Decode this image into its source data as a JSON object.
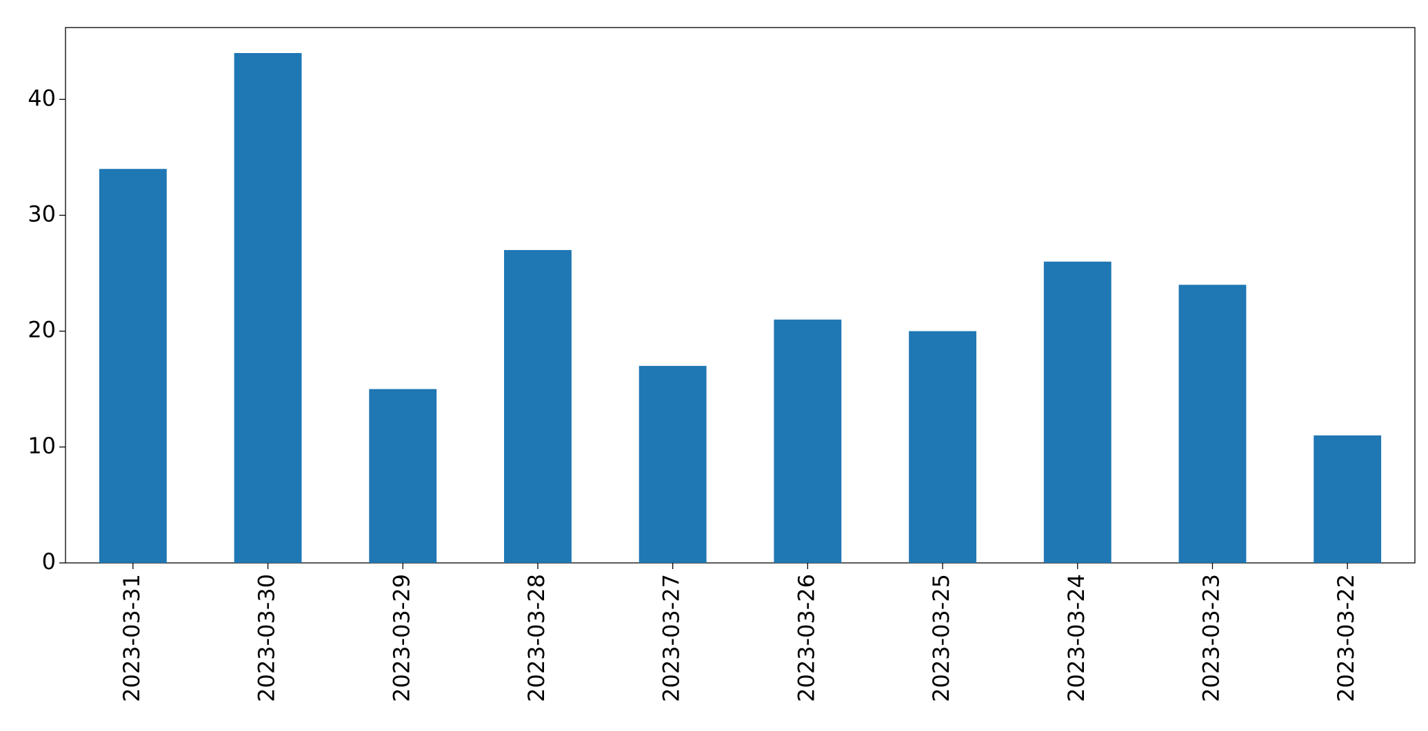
{
  "chart_data": {
    "type": "bar",
    "categories": [
      "2023-03-31",
      "2023-03-30",
      "2023-03-29",
      "2023-03-28",
      "2023-03-27",
      "2023-03-26",
      "2023-03-25",
      "2023-03-24",
      "2023-03-23",
      "2023-03-22"
    ],
    "values": [
      34,
      44,
      15,
      27,
      17,
      21,
      20,
      26,
      24,
      11
    ],
    "color": "#1f77b4",
    "ylim": [
      0,
      46.2
    ],
    "yticks": [
      0,
      10,
      20,
      30,
      40
    ],
    "grid": false
  }
}
